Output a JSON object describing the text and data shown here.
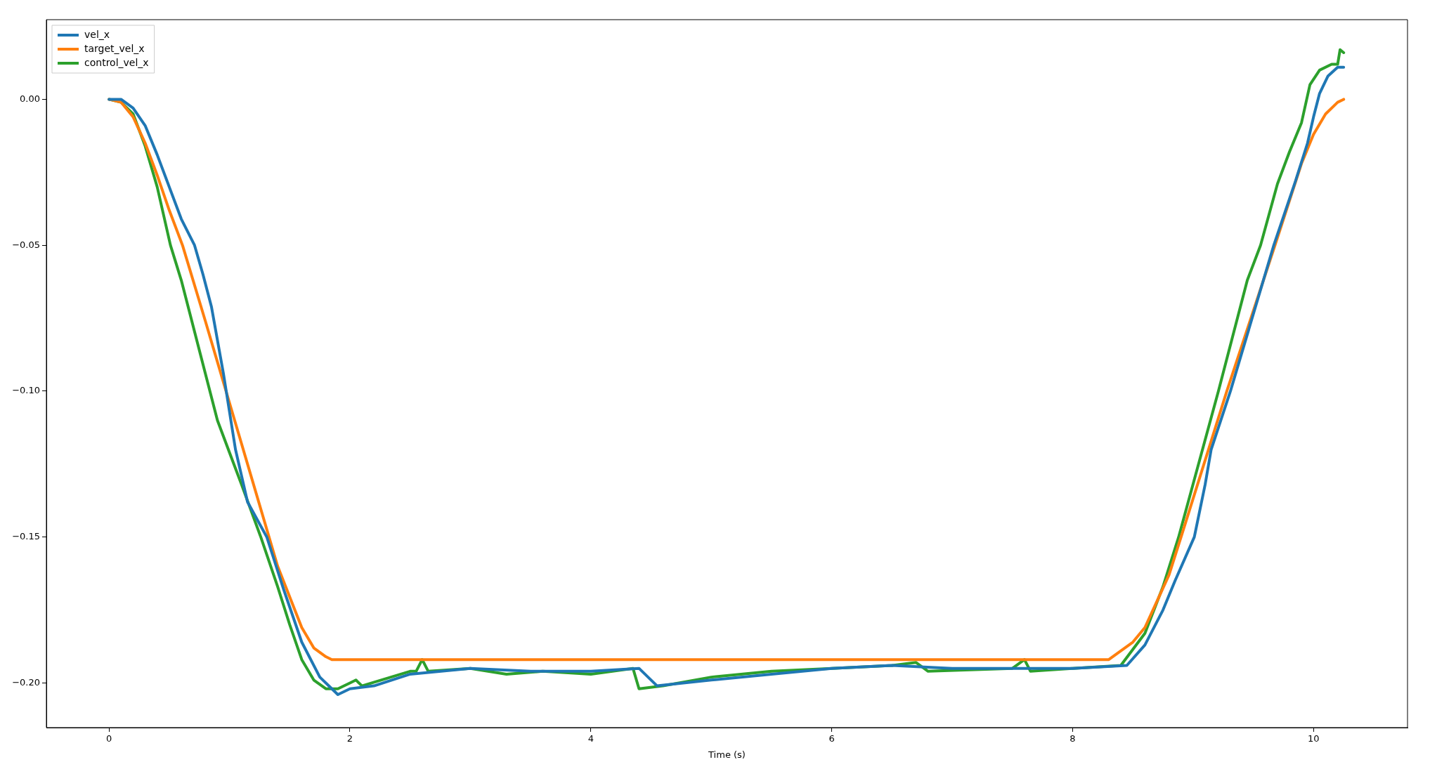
{
  "chart_data": {
    "type": "line",
    "xlabel": "Time (s)",
    "xlim": [
      -0.52,
      10.78
    ],
    "ylim": [
      -0.2153,
      0.0273
    ],
    "xticks": [
      0,
      2,
      4,
      6,
      8,
      10
    ],
    "yticks": [
      {
        "value": 0,
        "label": "0.00"
      },
      {
        "value": -0.05,
        "label": "−0.05"
      },
      {
        "value": -0.1,
        "label": "−0.10"
      },
      {
        "value": -0.15,
        "label": "−0.15"
      },
      {
        "value": -0.2,
        "label": "−0.20"
      }
    ],
    "grid": false,
    "legend": "top left",
    "marker": "none",
    "line_style": "solid",
    "series": [
      {
        "name": "vel_x",
        "color": "#1f77b4",
        "x": [
          0,
          0.1,
          0.2,
          0.3,
          0.4,
          0.5,
          0.6,
          0.71,
          0.78,
          0.85,
          0.95,
          1.05,
          1.15,
          1.31,
          1.45,
          1.6,
          1.75,
          1.85,
          1.9,
          2.0,
          2.2,
          2.5,
          3.0,
          3.5,
          4.0,
          4.4,
          4.55,
          5.0,
          5.5,
          6.0,
          6.5,
          7.0,
          7.5,
          8.0,
          8.45,
          8.6,
          8.75,
          8.85,
          9.01,
          9.1,
          9.15,
          9.31,
          9.67,
          9.85,
          9.95,
          10.0,
          10.05,
          10.12,
          10.2,
          10.25
        ],
        "values": [
          0,
          0,
          -0.003,
          -0.009,
          -0.019,
          -0.03,
          -0.041,
          -0.05,
          -0.06,
          -0.071,
          -0.094,
          -0.12,
          -0.138,
          -0.15,
          -0.168,
          -0.186,
          -0.198,
          -0.202,
          -0.204,
          -0.202,
          -0.201,
          -0.197,
          -0.195,
          -0.196,
          -0.196,
          -0.195,
          -0.201,
          -0.199,
          -0.197,
          -0.195,
          -0.194,
          -0.195,
          -0.195,
          -0.195,
          -0.194,
          -0.187,
          -0.175,
          -0.165,
          -0.15,
          -0.132,
          -0.12,
          -0.1,
          -0.05,
          -0.028,
          -0.015,
          -0.006,
          0.002,
          0.008,
          0.011,
          0.011
        ]
      },
      {
        "name": "target_vel_x",
        "color": "#ff7f0e",
        "x": [
          0,
          0.1,
          0.2,
          0.3,
          0.4,
          0.5,
          0.61,
          0.8,
          1.0,
          1.2,
          1.4,
          1.6,
          1.7,
          1.8,
          1.85,
          8.3,
          8.5,
          8.6,
          8.7,
          8.8,
          8.9,
          9.28,
          9.68,
          9.9,
          10.0,
          10.1,
          10.2,
          10.25
        ],
        "values": [
          0,
          -0.001,
          -0.006,
          -0.015,
          -0.026,
          -0.038,
          -0.05,
          -0.076,
          -0.104,
          -0.132,
          -0.16,
          -0.181,
          -0.188,
          -0.191,
          -0.192,
          -0.192,
          -0.186,
          -0.181,
          -0.172,
          -0.163,
          -0.15,
          -0.1,
          -0.05,
          -0.022,
          -0.012,
          -0.005,
          -0.001,
          0
        ]
      },
      {
        "name": "control_vel_x",
        "color": "#2ca02c",
        "x": [
          0,
          0.1,
          0.2,
          0.3,
          0.4,
          0.51,
          0.6,
          0.7,
          0.8,
          0.9,
          1.0,
          1.1,
          1.26,
          1.4,
          1.5,
          1.6,
          1.7,
          1.8,
          1.9,
          2.0,
          2.05,
          2.1,
          2.5,
          2.55,
          2.6,
          2.65,
          3.0,
          3.3,
          3.6,
          4.0,
          4.35,
          4.4,
          4.6,
          5.0,
          5.5,
          6.0,
          6.5,
          6.7,
          6.8,
          7.5,
          7.6,
          7.65,
          8.0,
          8.4,
          8.6,
          8.75,
          8.88,
          9.21,
          9.45,
          9.56,
          9.7,
          9.8,
          9.9,
          9.97,
          10.05,
          10.15,
          10.2,
          10.22,
          10.25
        ],
        "values": [
          0,
          -0.001,
          -0.005,
          -0.016,
          -0.03,
          -0.05,
          -0.062,
          -0.078,
          -0.094,
          -0.11,
          -0.121,
          -0.132,
          -0.15,
          -0.167,
          -0.18,
          -0.192,
          -0.199,
          -0.202,
          -0.202,
          -0.2,
          -0.199,
          -0.201,
          -0.196,
          -0.196,
          -0.192,
          -0.196,
          -0.195,
          -0.197,
          -0.196,
          -0.197,
          -0.195,
          -0.202,
          -0.201,
          -0.198,
          -0.196,
          -0.195,
          -0.194,
          -0.193,
          -0.196,
          -0.195,
          -0.192,
          -0.196,
          -0.195,
          -0.194,
          -0.183,
          -0.167,
          -0.15,
          -0.1,
          -0.062,
          -0.05,
          -0.029,
          -0.018,
          -0.008,
          0.005,
          0.01,
          0.012,
          0.012,
          0.017,
          0.016
        ]
      }
    ]
  }
}
